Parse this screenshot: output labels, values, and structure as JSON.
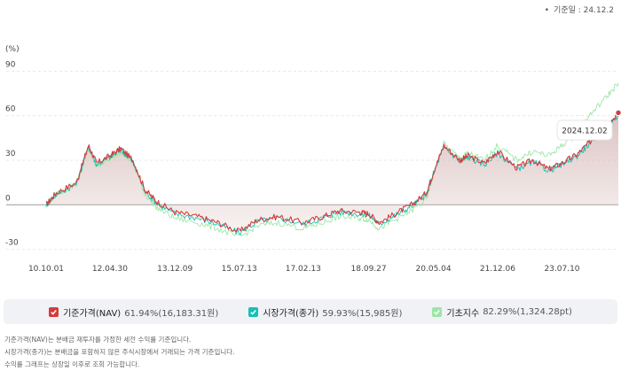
{
  "header": {
    "base_date": "기준일 : 24.12.2"
  },
  "chart_data": {
    "type": "line",
    "ylabel": "(%)",
    "ylim": [
      -35,
      95
    ],
    "yticks": [
      -30,
      0,
      30,
      60,
      90
    ],
    "xticks": [
      "10.10.01",
      "12.04.30",
      "13.12.09",
      "15.07.13",
      "17.02.13",
      "18.09.27",
      "20.05.04",
      "21.12.06",
      "23.07.10"
    ],
    "x": [
      2010.75,
      2011.0,
      2011.5,
      2011.8,
      2012.0,
      2012.33,
      2012.6,
      2012.9,
      2013.2,
      2013.5,
      2013.94,
      2014.5,
      2015.0,
      2015.53,
      2016.0,
      2016.5,
      2017.12,
      2017.6,
      2018.0,
      2018.5,
      2018.74,
      2019.0,
      2019.4,
      2019.8,
      2020.17,
      2020.34,
      2020.6,
      2021.0,
      2021.2,
      2021.6,
      2021.93,
      2022.4,
      2022.8,
      2023.2,
      2023.52,
      2023.9,
      2024.2,
      2024.6,
      2024.92
    ],
    "series": [
      {
        "name": "기준가격(NAV)",
        "color": "#d63b3b",
        "values": [
          0,
          8,
          15,
          40,
          28,
          33,
          38,
          30,
          10,
          2,
          -5,
          -8,
          -12,
          -18,
          -10,
          -8,
          -12,
          -8,
          -4,
          -5,
          -6,
          -12,
          -6,
          0,
          8,
          22,
          40,
          30,
          33,
          28,
          36,
          25,
          30,
          24,
          28,
          34,
          42,
          52,
          62
        ]
      },
      {
        "name": "시장가격(종가)",
        "color": "#16c0b6",
        "values": [
          0,
          7,
          14,
          39,
          27,
          32,
          37,
          29,
          9,
          1,
          -6,
          -9,
          -13,
          -19,
          -11,
          -9,
          -13,
          -9,
          -5,
          -6,
          -7,
          -13,
          -7,
          -1,
          7,
          21,
          39,
          29,
          32,
          27,
          35,
          24,
          29,
          23,
          27,
          33,
          41,
          51,
          60
        ]
      },
      {
        "name": "기초지수",
        "color": "#9ee6a6",
        "values": [
          0,
          7,
          14,
          38,
          26,
          31,
          36,
          28,
          7,
          -2,
          -9,
          -12,
          -16,
          -22,
          -14,
          -12,
          -16,
          -12,
          -8,
          -9,
          -10,
          -16,
          -10,
          -4,
          4,
          20,
          41,
          31,
          35,
          30,
          40,
          30,
          36,
          33,
          40,
          48,
          60,
          72,
          82
        ]
      }
    ],
    "tooltip": "2024.12.02"
  },
  "legend": [
    {
      "label": "기준가격(NAV)",
      "value": "61.94%(16,183.31원)",
      "color": "#d63b3b"
    },
    {
      "label": "시장가격(종가)",
      "value": "59.93%(15,985원)",
      "color": "#16c0b6"
    },
    {
      "label": "기초지수",
      "value": "82.29%(1,324.28pt)",
      "color": "#9ee6a6"
    }
  ],
  "notes": [
    "기준가격(NAV)는 분배금 재투자를 가정한 세전 수익률 기준입니다.",
    "시장가격(종가)는 분배금을 포함하지 않은 주식시장에서 거래되는 가격 기준입니다.",
    "수익률 그래프는 상장일 이후로 조회 가능합니다."
  ]
}
